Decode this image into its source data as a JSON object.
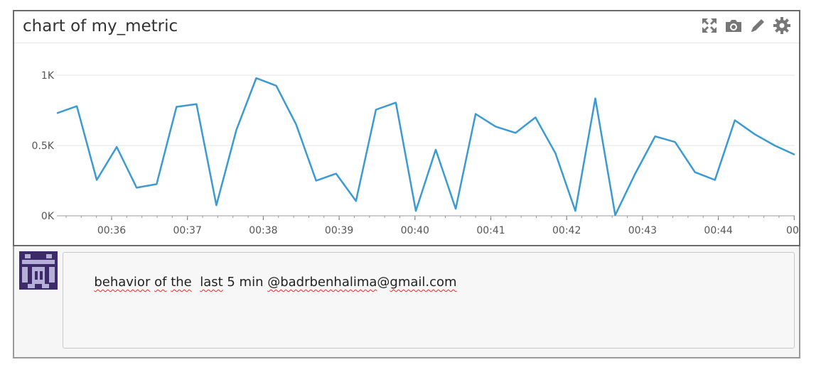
{
  "widget": {
    "title": "chart of my_metric",
    "toolbar": [
      {
        "name": "fullscreen-icon"
      },
      {
        "name": "camera-icon"
      },
      {
        "name": "pencil-icon"
      },
      {
        "name": "gear-icon"
      }
    ]
  },
  "chart_data": {
    "type": "line",
    "title": "",
    "xlabel": "",
    "ylabel": "",
    "x_ticks": [
      "00:36",
      "00:37",
      "00:38",
      "00:39",
      "00:40",
      "00:41",
      "00:42",
      "00:43",
      "00:44",
      "00:"
    ],
    "y_ticks": [
      "0K",
      "0.5K",
      "1K"
    ],
    "ylim": [
      0,
      1000
    ],
    "grid": true,
    "line_color": "#3a9ad4",
    "series": [
      {
        "name": "",
        "values": [
          730,
          780,
          255,
          490,
          200,
          225,
          775,
          795,
          75,
          610,
          980,
          925,
          650,
          250,
          300,
          105,
          755,
          805,
          35,
          470,
          50,
          725,
          635,
          590,
          700,
          445,
          35,
          835,
          5,
          300,
          565,
          525,
          310,
          255,
          680,
          580,
          500,
          435
        ]
      }
    ]
  },
  "comment": {
    "avatar": "avatar-icon",
    "words": [
      {
        "text": "behavior",
        "spell": true
      },
      {
        "text": " ",
        "spell": false
      },
      {
        "text": "of",
        "spell": true
      },
      {
        "text": " ",
        "spell": false
      },
      {
        "text": "the",
        "spell": true
      },
      {
        "text": "  ",
        "spell": false
      },
      {
        "text": "last",
        "spell": true
      },
      {
        "text": " 5 min ",
        "spell": false
      },
      {
        "text": "@badrbenhalima",
        "spell": true
      },
      {
        "text": "@",
        "spell": false
      },
      {
        "text": "gmail.com",
        "spell": true
      }
    ]
  }
}
